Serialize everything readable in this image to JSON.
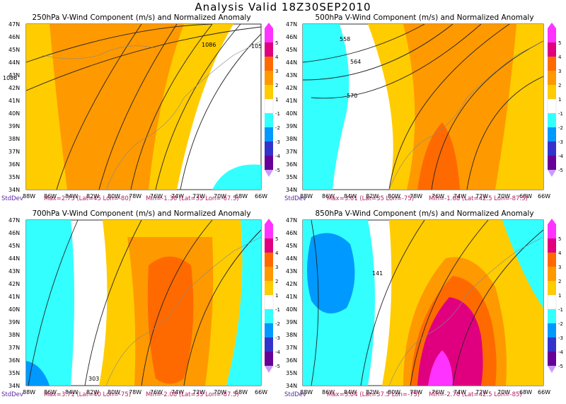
{
  "main_title": "Analysis Valid 18Z30SEP2010",
  "colorbar": {
    "labels": [
      "5",
      "4",
      "3",
      "2",
      "1",
      "-1",
      "-2",
      "-3",
      "-4",
      "-5"
    ],
    "colors": [
      "#ff33ff",
      "#e0007f",
      "#ff6a00",
      "#ff9900",
      "#ffcc00",
      "#ffffff",
      "#33ffff",
      "#0099ff",
      "#3333cc",
      "#660099",
      "#cc99ff"
    ]
  },
  "axes": {
    "lat_labels": [
      "47N",
      "46N",
      "45N",
      "44N",
      "43N",
      "42N",
      "41N",
      "40N",
      "39N",
      "38N",
      "37N",
      "36N",
      "35N",
      "34N"
    ],
    "lon_labels": [
      "88W",
      "86W",
      "84W",
      "82W",
      "80W",
      "78W",
      "76W",
      "74W",
      "72W",
      "70W",
      "68W",
      "66W"
    ]
  },
  "panels": [
    {
      "title": "250hPa V-Wind Component (m/s) and Normalized Anomaly",
      "stddev": "StdDev",
      "max": "Max=2.73 (Lat=45 Lon=-80)",
      "min": "Min=-1.36 (Lat=35 Lon=-67.5)",
      "contours": [
        "1086",
        "1086",
        "105"
      ]
    },
    {
      "title": "500hPa V-Wind Component (m/s) and Normalized Anomaly",
      "stddev": "StdDev",
      "max": "Max=3.61 (Lat=35 Lon=-75)",
      "min": "Min=-1.68 (Lat=42.5 Lon=-87.5)",
      "contours": [
        "558",
        "564",
        "570"
      ]
    },
    {
      "title": "700hPa V-Wind Component (m/s) and Normalized Anomaly",
      "stddev": "StdDev",
      "max": "Max=3.71 (Lat=40 Lon=-75)",
      "min": "Min=-2.08 (Lat=35 Lon=-87.5)",
      "contours": [
        "303"
      ]
    },
    {
      "title": "850hPa V-Wind Component (m/s) and Normalized Anomaly",
      "stddev": "StdDev",
      "max": "Max=5.04 (Lat=37.5 Lon=-75)",
      "min": "Min=-2.76 (Lat=42.5 Lon=-85)",
      "contours": [
        "141"
      ]
    }
  ]
}
